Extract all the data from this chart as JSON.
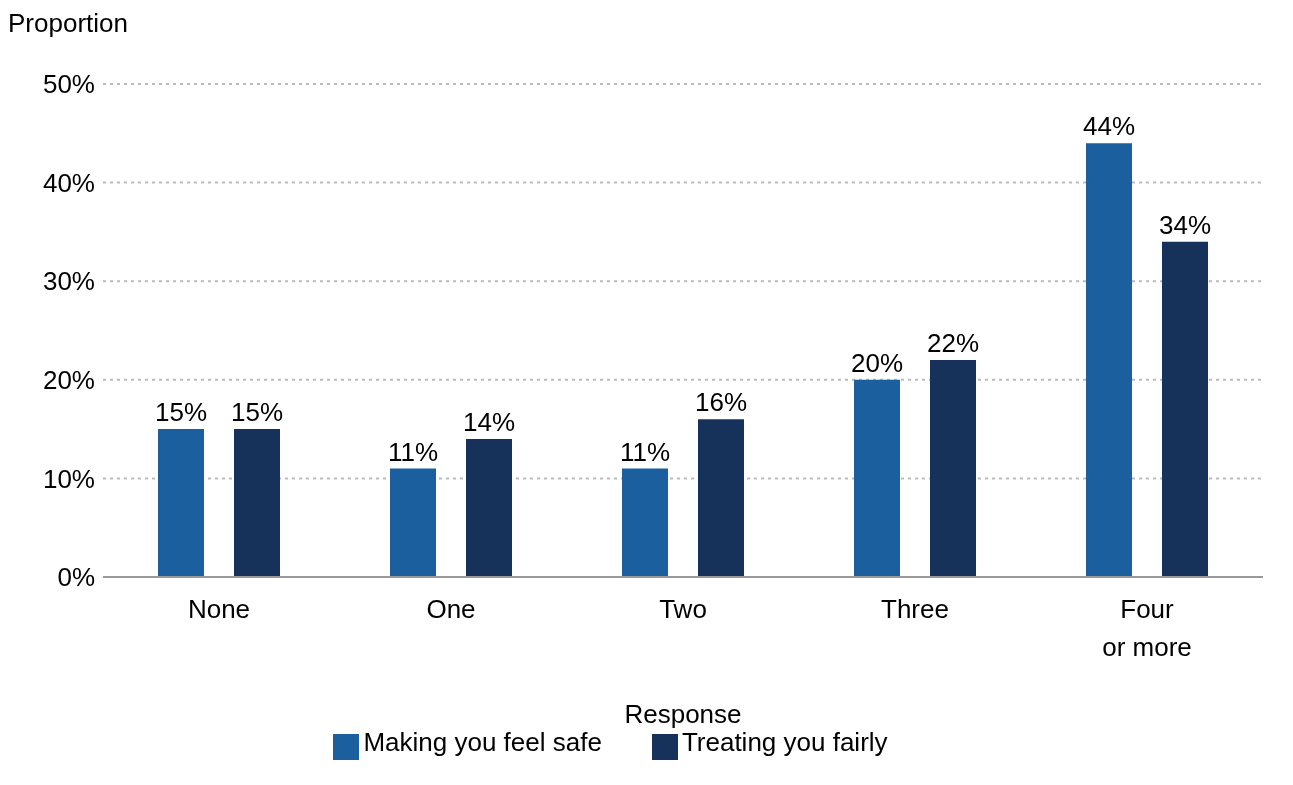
{
  "chart_data": {
    "type": "bar",
    "ylabel": "Proportion",
    "xlabel": "Response",
    "categories": [
      "None",
      "One",
      "Two",
      "Three",
      "Four or more"
    ],
    "series": [
      {
        "name": "Making you feel safe",
        "color": "#1b5f9e",
        "values": [
          15,
          11,
          11,
          20,
          44
        ],
        "value_labels": [
          "15%",
          "11%",
          "11%",
          "20%",
          "44%"
        ]
      },
      {
        "name": "Treating you fairly",
        "color": "#17325a",
        "values": [
          15,
          14,
          16,
          22,
          34
        ],
        "value_labels": [
          "15%",
          "14%",
          "16%",
          "22%",
          "34%"
        ]
      }
    ],
    "ylim": [
      0,
      50
    ],
    "yticks": [
      {
        "value": 0,
        "label": "0%"
      },
      {
        "value": 10,
        "label": "10%"
      },
      {
        "value": 20,
        "label": "20%"
      },
      {
        "value": 30,
        "label": "30%"
      },
      {
        "value": 40,
        "label": "40%"
      },
      {
        "value": 50,
        "label": "50%"
      }
    ],
    "grid": "y",
    "legend": "bottom"
  }
}
